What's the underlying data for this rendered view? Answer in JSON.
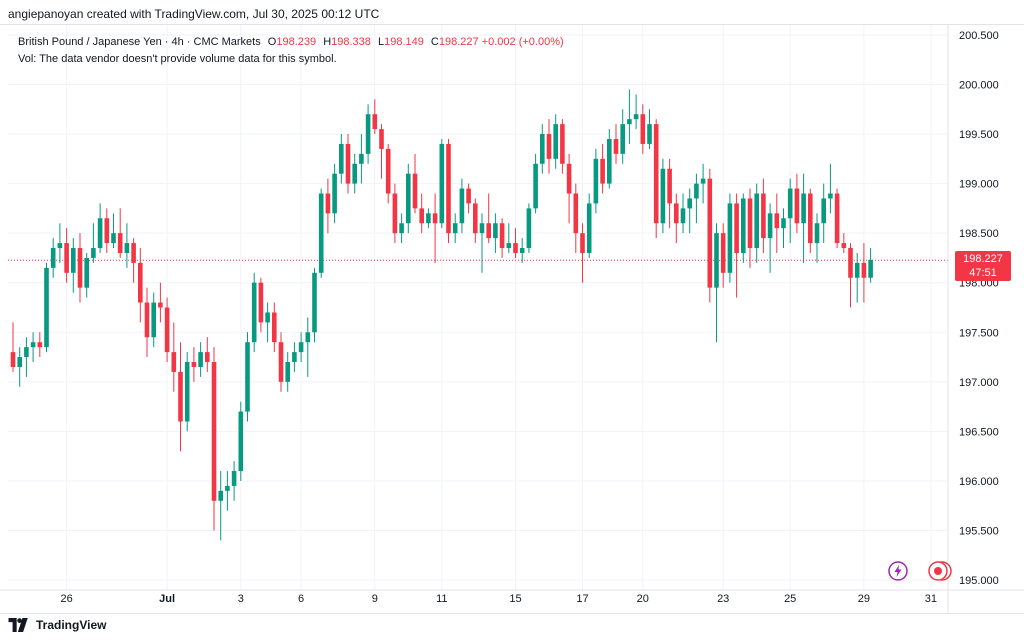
{
  "credit": "angiepanoyan created with TradingView.com, Jul 30, 2025 00:12 UTC",
  "legend": {
    "symbol": "British Pound / Japanese Yen · 4h · CMC Markets",
    "open_label": "O",
    "open": "198.239",
    "high_label": "H",
    "high": "198.338",
    "low_label": "L",
    "low": "198.149",
    "close_label": "C",
    "close": "198.227",
    "change": "+0.002 (+0.00%)",
    "volume_note": "Vol: The data vendor doesn't provide volume data for this symbol."
  },
  "price_tag": {
    "price": "198.227",
    "countdown": "47:51"
  },
  "footer": {
    "brand": "TradingView"
  },
  "colors": {
    "up": "#089981",
    "down": "#f23645",
    "grid": "#f0f3fa",
    "axis_text": "#131722"
  },
  "chart_data": {
    "type": "candlestick",
    "title": "British Pound / Japanese Yen · 4h · CMC Markets",
    "ylim": [
      194.9,
      200.6
    ],
    "y_ticks": [
      "195.000",
      "195.500",
      "196.000",
      "196.500",
      "197.000",
      "197.500",
      "198.000",
      "198.500",
      "199.000",
      "199.500",
      "200.000",
      "200.500"
    ],
    "x_ticks": [
      {
        "label": "26",
        "index": 8
      },
      {
        "label": "Jul",
        "index": 23
      },
      {
        "label": "3",
        "index": 34
      },
      {
        "label": "6",
        "index": 43
      },
      {
        "label": "9",
        "index": 54
      },
      {
        "label": "11",
        "index": 64
      },
      {
        "label": "15",
        "index": 75
      },
      {
        "label": "17",
        "index": 85
      },
      {
        "label": "20",
        "index": 94
      },
      {
        "label": "23",
        "index": 106
      },
      {
        "label": "25",
        "index": 116
      },
      {
        "label": "29",
        "index": 127
      },
      {
        "label": "31",
        "index": 137
      }
    ],
    "last_price": 198.227,
    "grid": true,
    "candles": [
      [
        197.3,
        197.6,
        197.1,
        197.15
      ],
      [
        197.15,
        197.35,
        196.95,
        197.25
      ],
      [
        197.25,
        197.45,
        197.05,
        197.35
      ],
      [
        197.35,
        197.5,
        197.2,
        197.4
      ],
      [
        197.4,
        197.5,
        197.25,
        197.35
      ],
      [
        197.35,
        198.2,
        197.3,
        198.15
      ],
      [
        198.15,
        198.45,
        198.05,
        198.35
      ],
      [
        198.35,
        198.6,
        198.2,
        198.4
      ],
      [
        198.4,
        198.55,
        198.0,
        198.1
      ],
      [
        198.1,
        198.45,
        197.9,
        198.35
      ],
      [
        198.35,
        198.5,
        197.8,
        197.95
      ],
      [
        197.95,
        198.3,
        197.85,
        198.25
      ],
      [
        198.25,
        198.6,
        198.2,
        198.35
      ],
      [
        198.35,
        198.8,
        198.3,
        198.65
      ],
      [
        198.65,
        198.75,
        198.3,
        198.4
      ],
      [
        198.4,
        198.7,
        198.35,
        198.5
      ],
      [
        198.5,
        198.75,
        198.25,
        198.3
      ],
      [
        198.3,
        198.6,
        198.15,
        198.4
      ],
      [
        198.4,
        198.45,
        198.0,
        198.2
      ],
      [
        198.2,
        198.35,
        197.6,
        197.8
      ],
      [
        197.8,
        197.95,
        197.25,
        197.45
      ],
      [
        197.45,
        197.9,
        197.35,
        197.8
      ],
      [
        197.8,
        198.0,
        197.6,
        197.75
      ],
      [
        197.75,
        197.85,
        197.2,
        197.3
      ],
      [
        197.3,
        197.6,
        196.9,
        197.1
      ],
      [
        197.1,
        197.4,
        196.3,
        196.6
      ],
      [
        196.6,
        197.3,
        196.5,
        197.2
      ],
      [
        197.2,
        197.35,
        197.0,
        197.15
      ],
      [
        197.15,
        197.4,
        197.05,
        197.3
      ],
      [
        197.3,
        197.45,
        197.1,
        197.2
      ],
      [
        197.2,
        197.35,
        195.5,
        195.8
      ],
      [
        195.8,
        196.1,
        195.4,
        195.9
      ],
      [
        195.9,
        196.1,
        195.7,
        195.95
      ],
      [
        195.95,
        196.2,
        195.8,
        196.1
      ],
      [
        196.1,
        196.8,
        196.0,
        196.7
      ],
      [
        196.7,
        197.5,
        196.6,
        197.4
      ],
      [
        197.4,
        198.1,
        197.3,
        198.0
      ],
      [
        198.0,
        198.05,
        197.5,
        197.6
      ],
      [
        197.6,
        197.8,
        197.4,
        197.7
      ],
      [
        197.7,
        197.8,
        197.3,
        197.4
      ],
      [
        197.4,
        197.5,
        196.9,
        197.0
      ],
      [
        197.0,
        197.3,
        196.9,
        197.2
      ],
      [
        197.2,
        197.4,
        197.1,
        197.3
      ],
      [
        197.3,
        197.5,
        197.2,
        197.4
      ],
      [
        197.4,
        197.65,
        197.05,
        197.5
      ],
      [
        197.5,
        198.15,
        197.4,
        198.1
      ],
      [
        198.1,
        198.95,
        198.05,
        198.9
      ],
      [
        198.9,
        199.05,
        198.5,
        198.7
      ],
      [
        198.7,
        199.2,
        198.6,
        199.1
      ],
      [
        199.1,
        199.5,
        199.0,
        199.4
      ],
      [
        199.4,
        199.5,
        198.9,
        199.0
      ],
      [
        199.0,
        199.3,
        198.9,
        199.2
      ],
      [
        199.2,
        199.5,
        199.0,
        199.3
      ],
      [
        199.3,
        199.8,
        199.2,
        199.7
      ],
      [
        199.7,
        199.85,
        199.5,
        199.55
      ],
      [
        199.55,
        199.6,
        199.05,
        199.35
      ],
      [
        199.35,
        199.4,
        198.8,
        198.9
      ],
      [
        198.9,
        199.0,
        198.4,
        198.5
      ],
      [
        198.5,
        198.7,
        198.4,
        198.6
      ],
      [
        198.6,
        199.2,
        198.5,
        199.1
      ],
      [
        199.1,
        199.3,
        198.7,
        198.75
      ],
      [
        198.75,
        198.9,
        198.5,
        198.6
      ],
      [
        198.6,
        198.75,
        198.55,
        198.7
      ],
      [
        198.7,
        198.9,
        198.2,
        198.6
      ],
      [
        198.6,
        199.45,
        198.55,
        199.4
      ],
      [
        199.4,
        199.45,
        198.4,
        198.5
      ],
      [
        198.5,
        198.7,
        198.4,
        198.6
      ],
      [
        198.6,
        199.05,
        198.5,
        198.95
      ],
      [
        198.95,
        199.0,
        198.7,
        198.8
      ],
      [
        198.8,
        198.85,
        198.4,
        198.5
      ],
      [
        198.5,
        198.7,
        198.1,
        198.6
      ],
      [
        198.6,
        198.9,
        198.4,
        198.45
      ],
      [
        198.45,
        198.7,
        198.3,
        198.6
      ],
      [
        198.6,
        198.65,
        198.25,
        198.35
      ],
      [
        198.35,
        198.6,
        198.3,
        198.4
      ],
      [
        198.4,
        198.55,
        198.25,
        198.3
      ],
      [
        198.3,
        198.45,
        198.2,
        198.35
      ],
      [
        198.35,
        198.8,
        198.3,
        198.75
      ],
      [
        198.75,
        199.3,
        198.7,
        199.2
      ],
      [
        199.2,
        199.6,
        199.1,
        199.5
      ],
      [
        199.5,
        199.65,
        199.1,
        199.25
      ],
      [
        199.25,
        199.7,
        199.15,
        199.6
      ],
      [
        199.6,
        199.65,
        199.1,
        199.2
      ],
      [
        199.2,
        199.3,
        198.6,
        198.9
      ],
      [
        198.9,
        199.0,
        198.3,
        198.5
      ],
      [
        198.5,
        198.6,
        198.0,
        198.3
      ],
      [
        198.3,
        198.9,
        198.25,
        198.8
      ],
      [
        198.8,
        199.35,
        198.7,
        199.25
      ],
      [
        199.25,
        199.4,
        198.9,
        199.0
      ],
      [
        199.0,
        199.55,
        198.95,
        199.45
      ],
      [
        199.45,
        199.6,
        199.2,
        199.3
      ],
      [
        199.3,
        199.75,
        199.2,
        199.6
      ],
      [
        199.6,
        199.95,
        199.4,
        199.65
      ],
      [
        199.65,
        199.9,
        199.55,
        199.7
      ],
      [
        199.7,
        199.8,
        199.3,
        199.4
      ],
      [
        199.4,
        199.75,
        199.35,
        199.6
      ],
      [
        199.6,
        199.65,
        198.45,
        198.6
      ],
      [
        198.6,
        199.25,
        198.5,
        199.15
      ],
      [
        199.15,
        199.25,
        198.55,
        198.8
      ],
      [
        198.8,
        198.9,
        198.4,
        198.6
      ],
      [
        198.6,
        198.9,
        198.5,
        198.75
      ],
      [
        198.75,
        198.95,
        198.5,
        198.85
      ],
      [
        198.85,
        199.1,
        198.6,
        199.0
      ],
      [
        199.0,
        199.2,
        198.8,
        199.05
      ],
      [
        199.05,
        199.15,
        197.8,
        197.95
      ],
      [
        197.95,
        198.6,
        197.4,
        198.5
      ],
      [
        198.5,
        198.6,
        197.95,
        198.1
      ],
      [
        198.1,
        198.9,
        198.0,
        198.8
      ],
      [
        198.8,
        198.9,
        197.85,
        198.3
      ],
      [
        198.3,
        198.9,
        198.2,
        198.85
      ],
      [
        198.85,
        198.95,
        198.15,
        198.35
      ],
      [
        198.35,
        199.0,
        198.2,
        198.9
      ],
      [
        198.9,
        199.05,
        198.3,
        198.45
      ],
      [
        198.45,
        198.8,
        198.1,
        198.7
      ],
      [
        198.7,
        198.9,
        198.3,
        198.55
      ],
      [
        198.55,
        198.75,
        198.35,
        198.65
      ],
      [
        198.65,
        199.05,
        198.4,
        198.95
      ],
      [
        198.95,
        199.1,
        198.5,
        198.6
      ],
      [
        198.6,
        199.1,
        198.2,
        198.9
      ],
      [
        198.9,
        198.95,
        198.3,
        198.4
      ],
      [
        198.4,
        198.7,
        198.2,
        198.6
      ],
      [
        198.6,
        199.0,
        198.4,
        198.85
      ],
      [
        198.85,
        199.2,
        198.7,
        198.9
      ],
      [
        198.9,
        198.95,
        198.35,
        198.4
      ],
      [
        198.4,
        198.5,
        198.3,
        198.35
      ],
      [
        198.35,
        198.4,
        197.75,
        198.05
      ],
      [
        198.05,
        198.3,
        197.8,
        198.2
      ],
      [
        198.2,
        198.4,
        197.8,
        198.05
      ],
      [
        198.05,
        198.35,
        198.0,
        198.23
      ]
    ]
  }
}
